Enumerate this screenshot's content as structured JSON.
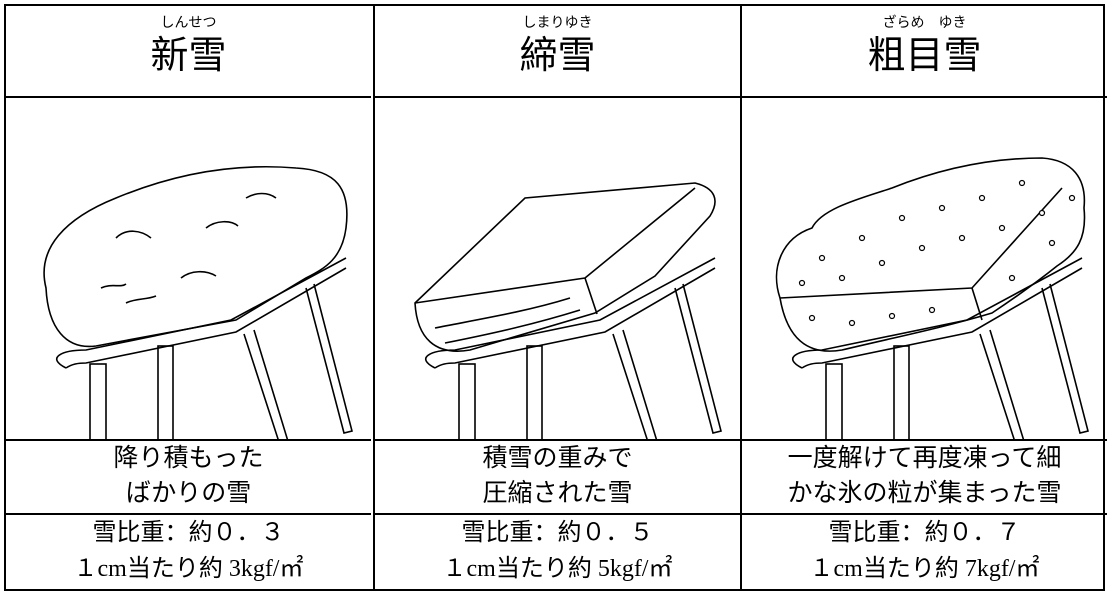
{
  "columns": [
    {
      "reading": "しんせつ",
      "name": "新雪",
      "description": [
        "降り積もった",
        "ばかりの雪"
      ],
      "density": [
        "雪比重：約０．３",
        "１cm当たり約 3kgf/㎡"
      ]
    },
    {
      "reading": "しまりゆき",
      "name": "締雪",
      "description": [
        "積雪の重みで",
        "圧縮された雪"
      ],
      "density": [
        "雪比重：約０．５",
        "１cm当たり約 5kgf/㎡"
      ]
    },
    {
      "reading": "ざらめ　ゆき",
      "name": "粗目雪",
      "description": [
        "一度解けて再度凍って細",
        "かな氷の粒が集まった雪"
      ],
      "density": [
        "雪比重：約０．７",
        "１cm当たり約 7kgf/㎡"
      ]
    }
  ]
}
